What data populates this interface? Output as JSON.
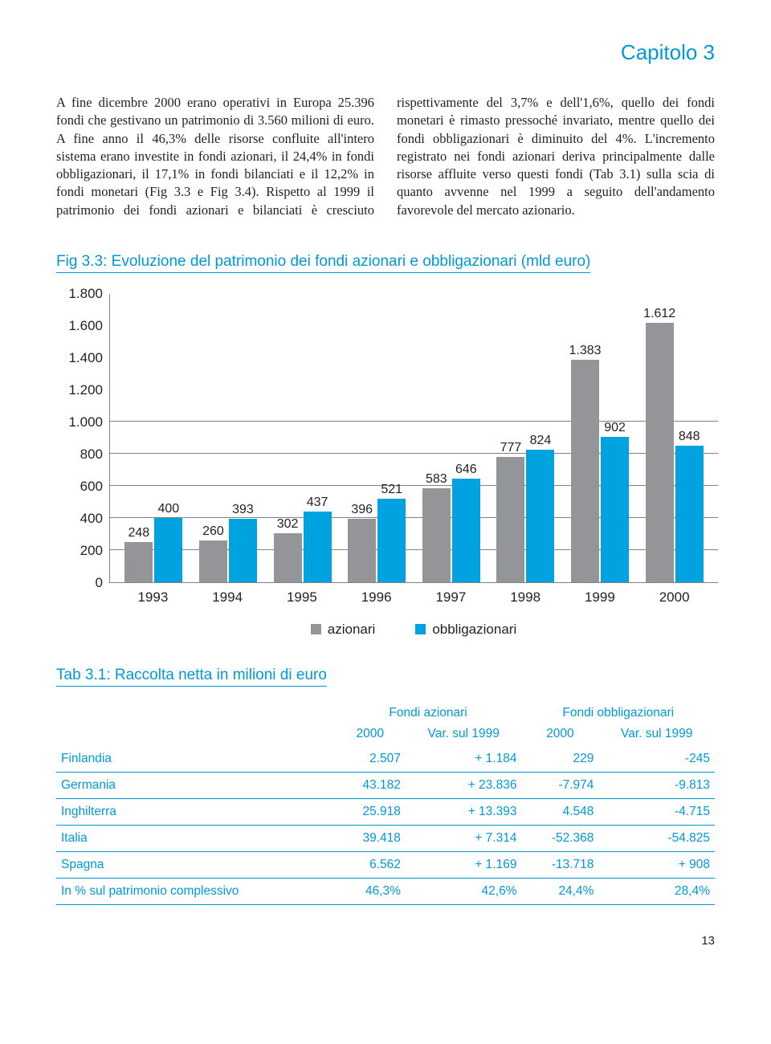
{
  "chapter": "Capitolo 3",
  "body_text": "A fine dicembre 2000 erano operativi in Europa 25.396 fondi che gestivano un patrimonio di 3.560 milioni di euro. A fine anno il 46,3% delle risorse confluite all'intero sistema erano investite in fondi azionari, il 24,4% in fondi obbligazionari, il 17,1% in fondi bilanciati e il 12,2% in fondi monetari (Fig 3.3 e Fig 3.4). Rispetto al 1999 il patrimonio dei fondi azionari e bilanciati è cresciuto rispettivamente del 3,7% e dell'1,6%, quello dei fondi monetari è rimasto pressoché invariato, mentre quello dei fondi obbligazionari è diminuito del 4%. L'incremento registrato nei fondi azionari deriva principalmente dalle risorse affluite verso questi fondi (Tab 3.1) sulla scia di quanto avvenne nel 1999 a seguito dell'andamento favorevole del mercato azionario.",
  "fig_title": "Fig 3.3: Evoluzione del patrimonio dei fondi azionari e obbligazionari (mld euro)",
  "chart": {
    "type": "bar",
    "y_max": 1800,
    "y_ticks": [
      0,
      200,
      400,
      600,
      800,
      1000,
      1200,
      1400,
      1600,
      1800
    ],
    "y_tick_labels": [
      "0",
      "200",
      "400",
      "600",
      "800",
      "1.000",
      "1.200",
      "1.400",
      "1.600",
      "1.800"
    ],
    "grid_levels": [
      200,
      400,
      600,
      800,
      1000
    ],
    "categories": [
      "1993",
      "1994",
      "1995",
      "1996",
      "1997",
      "1998",
      "1999",
      "2000"
    ],
    "series": [
      {
        "name": "azionari",
        "color": "#939598",
        "values": [
          248,
          260,
          302,
          396,
          583,
          777,
          1383,
          1612
        ]
      },
      {
        "name": "obbligazionari",
        "color": "#00a3e0",
        "values": [
          400,
          393,
          437,
          521,
          646,
          824,
          902,
          848
        ]
      }
    ],
    "series1_labels": [
      "248",
      "260",
      "302",
      "396",
      "583",
      "777",
      "1.383",
      "1.612"
    ],
    "series2_labels": [
      "400",
      "393",
      "437",
      "521",
      "646",
      "824",
      "902",
      "848"
    ],
    "grid_color": "#808285",
    "background_color": "#ffffff"
  },
  "tab_title": "Tab 3.1: Raccolta netta in milioni di euro",
  "table": {
    "group_heads": [
      "Fondi azionari",
      "Fondi obbligazionari"
    ],
    "sub_heads": [
      "2000",
      "Var. sul 1999",
      "2000",
      "Var. sul 1999"
    ],
    "rows": [
      {
        "label": "Finlandia",
        "cells": [
          "2.507",
          "+ 1.184",
          "229",
          "-245"
        ]
      },
      {
        "label": "Germania",
        "cells": [
          "43.182",
          "+ 23.836",
          "-7.974",
          "-9.813"
        ]
      },
      {
        "label": "Inghilterra",
        "cells": [
          "25.918",
          "+ 13.393",
          "4.548",
          "-4.715"
        ]
      },
      {
        "label": "Italia",
        "cells": [
          "39.418",
          "+ 7.314",
          "-52.368",
          "-54.825"
        ]
      },
      {
        "label": "Spagna",
        "cells": [
          "6.562",
          "+ 1.169",
          "-13.718",
          "+ 908"
        ]
      },
      {
        "label": "In % sul patrimonio complessivo",
        "cells": [
          "46,3%",
          "42,6%",
          "24,4%",
          "28,4%"
        ]
      }
    ]
  },
  "page_number": "13"
}
